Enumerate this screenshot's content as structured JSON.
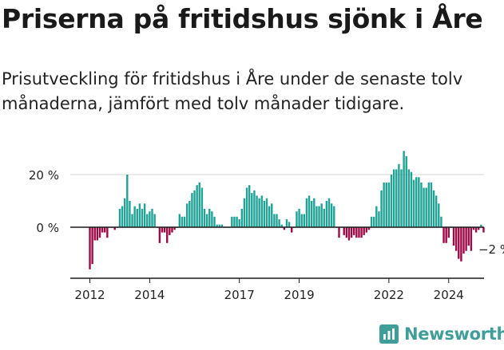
{
  "title": "Priserna på fritidshus sjönk i Åre",
  "subtitle": "Prisutveckling för fritidshus i Åre under de senaste tolv månaderna, jämfört med tolv månader tidigare.",
  "brand": {
    "name": "Newsworthy",
    "color": "#3f9e9a"
  },
  "chart_data": {
    "type": "bar",
    "title": "",
    "xlabel": "",
    "ylabel": "",
    "ylim": [
      -20,
      30
    ],
    "x_start": "2012-01",
    "frequency": "monthly",
    "yticks": [
      {
        "value": 20,
        "label": "20 %"
      },
      {
        "value": 0,
        "label": "0 %"
      }
    ],
    "xticks": [
      {
        "label": "2012",
        "month_index": 0
      },
      {
        "label": "2014",
        "month_index": 24
      },
      {
        "label": "2017",
        "month_index": 60
      },
      {
        "label": "2019",
        "month_index": 84
      },
      {
        "label": "2022",
        "month_index": 120
      },
      {
        "label": "2024",
        "month_index": 144
      }
    ],
    "colors": {
      "positive": "#20a296",
      "negative": "#9e0a47",
      "grid": "#d4d4d4",
      "axis": "#1a1a1a"
    },
    "annotation": {
      "label": "−2 %",
      "month_index": 154
    },
    "values": [
      -16,
      -14,
      -5,
      -5,
      -4,
      -2,
      -2,
      -4,
      0,
      0,
      -1,
      0,
      7,
      8,
      11,
      20,
      10,
      5,
      8,
      7,
      9,
      7,
      9,
      5,
      6,
      7,
      5,
      0,
      -6,
      -2,
      -2,
      -6,
      -3,
      -2,
      -1,
      0,
      5,
      4,
      4,
      9,
      10,
      13,
      14,
      16,
      17,
      15,
      7,
      5,
      7,
      6,
      4,
      1,
      1,
      1,
      0,
      0,
      0,
      4,
      4,
      4,
      3,
      7,
      11,
      15,
      16,
      13,
      14,
      12,
      11,
      12,
      10,
      11,
      8,
      9,
      5,
      5,
      3,
      1,
      -1,
      3,
      2,
      -2,
      0,
      6,
      7,
      5,
      5,
      11,
      12,
      10,
      11,
      8,
      8,
      9,
      7,
      10,
      11,
      9,
      8,
      0,
      -4,
      0,
      -3,
      -4,
      -5,
      -4,
      -3,
      -4,
      -4,
      -4,
      -3,
      -2,
      -1,
      4,
      4,
      8,
      6,
      14,
      17,
      17,
      17,
      20,
      22,
      22,
      24,
      22,
      29,
      27,
      22,
      21,
      18,
      19,
      19,
      17,
      15,
      15,
      17,
      17,
      14,
      12,
      9,
      4,
      -6,
      -6,
      -4,
      0,
      -7,
      -9,
      -12,
      -13,
      -10,
      -9,
      -7,
      -9,
      -1,
      -2,
      -1,
      1,
      -2
    ]
  }
}
